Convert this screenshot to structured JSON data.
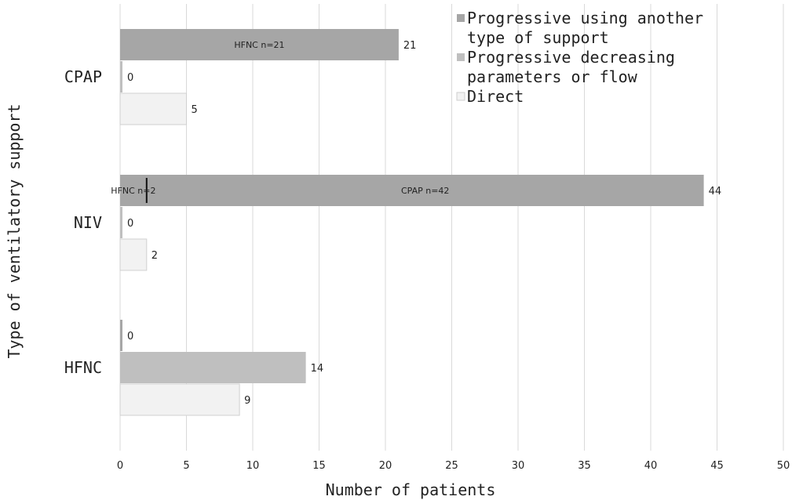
{
  "chart_data": {
    "type": "bar",
    "orientation": "horizontal",
    "categories": [
      "CPAP",
      "NIV",
      "HFNC"
    ],
    "series": [
      {
        "name": "Progressive using another type of support",
        "color": "#a6a6a6",
        "values": [
          21,
          44,
          0
        ],
        "segments": [
          [
            {
              "label": "HFNC n=21",
              "value": 21
            }
          ],
          [
            {
              "label": "HFNC n=2",
              "value": 2
            },
            {
              "label": "CPAP n=42",
              "value": 42
            }
          ],
          []
        ]
      },
      {
        "name": "Progressive decreasing parameters or flow",
        "color": "#bfbfbf",
        "values": [
          0,
          0,
          14
        ]
      },
      {
        "name": "Direct",
        "color": "#f2f2f2",
        "values": [
          5,
          2,
          9
        ]
      }
    ],
    "xlabel": "Number of patients",
    "ylabel": "Type of ventilatory support",
    "xlim": [
      0,
      50
    ],
    "xticks": [
      0,
      5,
      10,
      15,
      20,
      25,
      30,
      35,
      40,
      45,
      50
    ],
    "grid": "vertical",
    "legend": {
      "position": "top-right",
      "entries": [
        {
          "lines": [
            "Progressive using another",
            "type of support"
          ],
          "color": "#a6a6a6"
        },
        {
          "lines": [
            "Progressive decreasing",
            "parameters or flow"
          ],
          "color": "#bfbfbf"
        },
        {
          "lines": [
            "Direct"
          ],
          "color": "#f2f2f2"
        }
      ]
    }
  }
}
